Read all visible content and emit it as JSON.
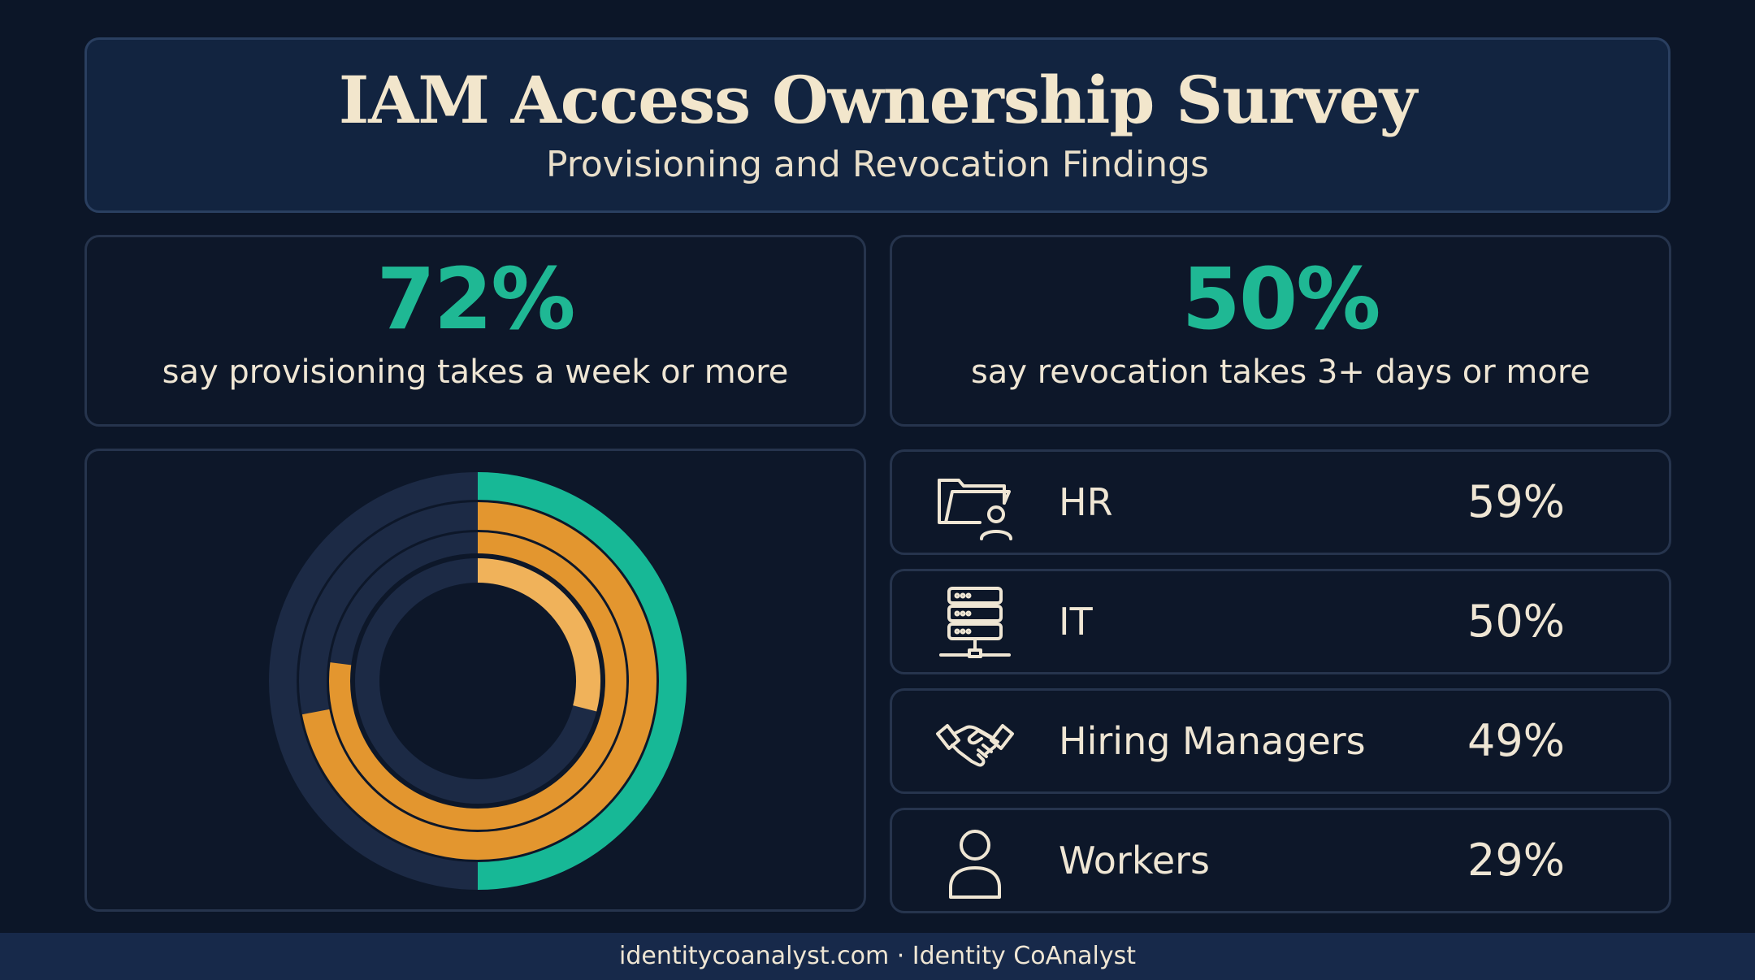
{
  "header": {
    "title": "IAM Access Ownership Survey",
    "subtitle": "Provisioning and Revocation Findings"
  },
  "stats": [
    {
      "value": "72%",
      "caption": "say provisioning takes a week or more"
    },
    {
      "value": "50%",
      "caption": "say revocation takes 3+ days or more"
    }
  ],
  "owners": [
    {
      "icon": "folder-user-icon",
      "label": "HR",
      "percent": "59%"
    },
    {
      "icon": "server-network-icon",
      "label": "IT",
      "percent": "50%"
    },
    {
      "icon": "handshake-icon",
      "label": "Hiring Managers",
      "percent": "49%"
    },
    {
      "icon": "person-icon",
      "label": "Workers",
      "percent": "29%"
    }
  ],
  "chart_data": {
    "type": "radial-donut",
    "rings": [
      {
        "value": 50,
        "color": "#17b896",
        "track": "#1c2a45"
      },
      {
        "value": 72,
        "color": "#e3962f",
        "track": "#1c2a45"
      },
      {
        "value": 77,
        "color": "#e3962f",
        "track": "#1c2a45"
      },
      {
        "value": 29,
        "color": "#f0b25a",
        "track": "#1c2a45"
      }
    ]
  },
  "colors": {
    "accent": "#1fb894",
    "orange": "#e3962f",
    "light_orange": "#f0b25a",
    "background": "#0c1628"
  },
  "footer": {
    "text": "identitycoanalyst.com · Identity CoAnalyst"
  }
}
